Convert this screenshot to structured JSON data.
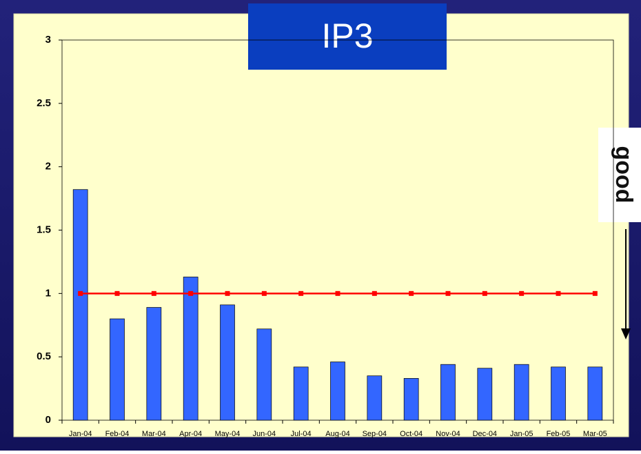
{
  "chart_data": {
    "type": "bar",
    "title": "IP3",
    "annotation": "good",
    "categories": [
      "Jan-04",
      "Feb-04",
      "Mar-04",
      "Apr-04",
      "May-04",
      "Jun-04",
      "Jul-04",
      "Aug-04",
      "Sep-04",
      "Oct-04",
      "Nov-04",
      "Dec-04",
      "Jan-05",
      "Feb-05",
      "Mar-05"
    ],
    "series": [
      {
        "type": "bar",
        "color": "#3366ff",
        "values": [
          1.82,
          0.8,
          0.89,
          1.13,
          0.91,
          0.72,
          0.42,
          0.46,
          0.35,
          0.33,
          0.44,
          0.41,
          0.44,
          0.42,
          0.42
        ]
      },
      {
        "type": "line",
        "color": "#ff0000",
        "values": [
          1,
          1,
          1,
          1,
          1,
          1,
          1,
          1,
          1,
          1,
          1,
          1,
          1,
          1,
          1
        ]
      }
    ],
    "ylim": [
      0,
      3
    ],
    "yticks": [
      0,
      0.5,
      1,
      1.5,
      2,
      2.5,
      3
    ],
    "grid": false
  }
}
